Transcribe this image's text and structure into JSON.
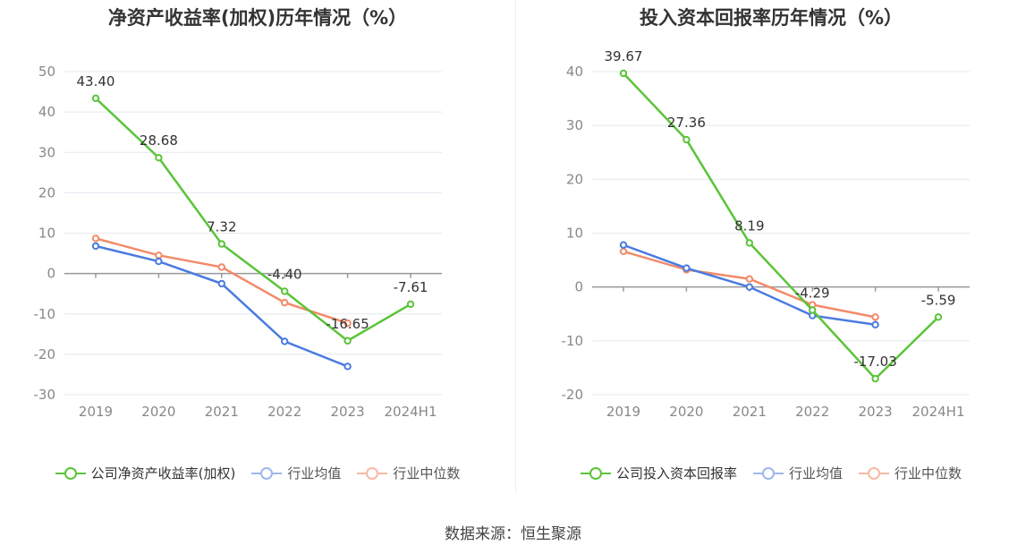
{
  "source": "数据来源：恒生聚源",
  "colors": {
    "company": "#5bc43a",
    "avg": "#4a7be0",
    "median": "#f28b6a",
    "grid": "#e4e8f0",
    "axis": "#999999"
  },
  "chart_data": [
    {
      "type": "line",
      "title": "净资产收益率(加权)历年情况（%）",
      "categories": [
        "2019",
        "2020",
        "2021",
        "2022",
        "2023",
        "2024H1"
      ],
      "yticks": [
        "50",
        "40",
        "30",
        "20",
        "10",
        "0",
        "-10",
        "-20",
        "-30"
      ],
      "ylim": [
        -30,
        50
      ],
      "grid": true,
      "legend": "bottom-center",
      "series": [
        {
          "name": "公司净资产收益率(加权)",
          "color": "#5bc43a",
          "values": [
            43.4,
            28.68,
            7.32,
            -4.4,
            -16.65,
            -7.61
          ],
          "labels": [
            "43.40",
            "28.68",
            "7.32",
            "-4.40",
            "-16.65",
            "-7.61"
          ]
        },
        {
          "name": "行业均值",
          "color": "#4a7be0",
          "values": [
            6.8,
            3.0,
            -2.5,
            -16.8,
            -23.0,
            null
          ]
        },
        {
          "name": "行业中位数",
          "color": "#f28b6a",
          "values": [
            8.7,
            4.5,
            1.6,
            -7.2,
            -12.3,
            null
          ]
        }
      ]
    },
    {
      "type": "line",
      "title": "投入资本回报率历年情况（%）",
      "categories": [
        "2019",
        "2020",
        "2021",
        "2022",
        "2023",
        "2024H1"
      ],
      "yticks": [
        "40",
        "30",
        "20",
        "10",
        "0",
        "-10",
        "-20"
      ],
      "ylim": [
        -20,
        40
      ],
      "grid": true,
      "legend": "bottom-center",
      "series": [
        {
          "name": "公司投入资本回报率",
          "color": "#5bc43a",
          "values": [
            39.67,
            27.36,
            8.19,
            -4.29,
            -17.03,
            -5.59
          ],
          "labels": [
            "39.67",
            "27.36",
            "8.19",
            "-4.29",
            "-17.03",
            "-5.59"
          ]
        },
        {
          "name": "行业均值",
          "color": "#4a7be0",
          "values": [
            7.8,
            3.5,
            0.0,
            -5.3,
            -7.0,
            null
          ]
        },
        {
          "name": "行业中位数",
          "color": "#f28b6a",
          "values": [
            6.6,
            3.2,
            1.5,
            -3.3,
            -5.6,
            null
          ]
        }
      ]
    }
  ]
}
